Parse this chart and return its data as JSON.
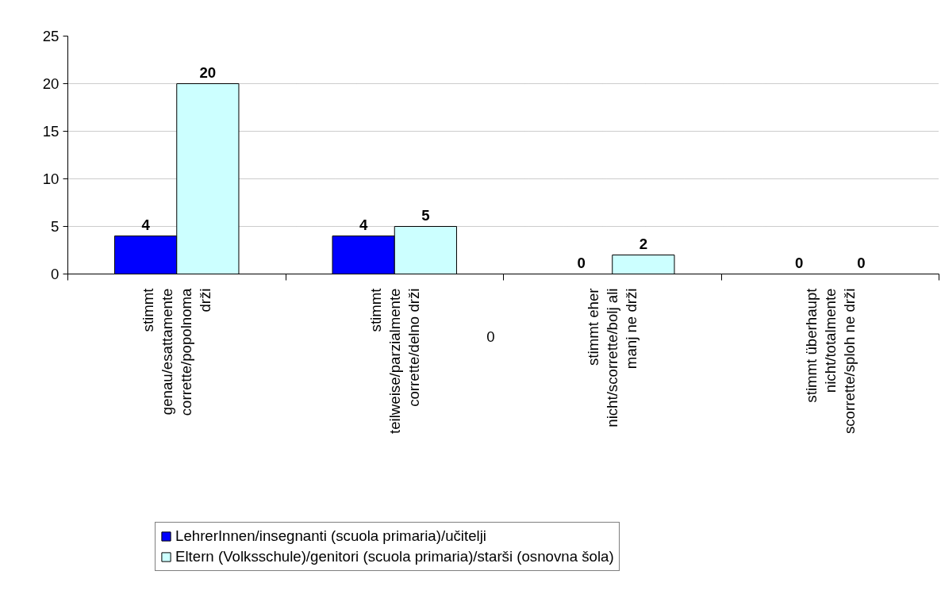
{
  "chart_data": {
    "type": "bar",
    "categories": [
      "stimmt\ngenau/esattamente\ncorrette/popolnoma\ndrži",
      "stimmt\nteilweise/parzialmente\ncorrette/delno drži",
      "stimmt eher\nnicht/scorrette/bolj ali\nmanj ne drži",
      "stimmt überhaupt\nnicht/totalmente\nscorrette/sploh ne drži"
    ],
    "series": [
      {
        "name": "LehrerInnen/insegnanti (scuola primaria)/učitelji",
        "color": "#0000ff",
        "values": [
          4,
          4,
          0,
          0
        ]
      },
      {
        "name": "Eltern (Volksschule)/genitori (scuola primaria)/starši (osnovna šola)",
        "color": "#ccffff",
        "values": [
          20,
          5,
          2,
          0
        ]
      }
    ],
    "ylim": [
      0,
      25
    ],
    "yticks": [
      0,
      5,
      10,
      15,
      20,
      25
    ],
    "grid": "y",
    "data_labels": true,
    "legend": "bottom",
    "annotations": [
      "0"
    ]
  }
}
